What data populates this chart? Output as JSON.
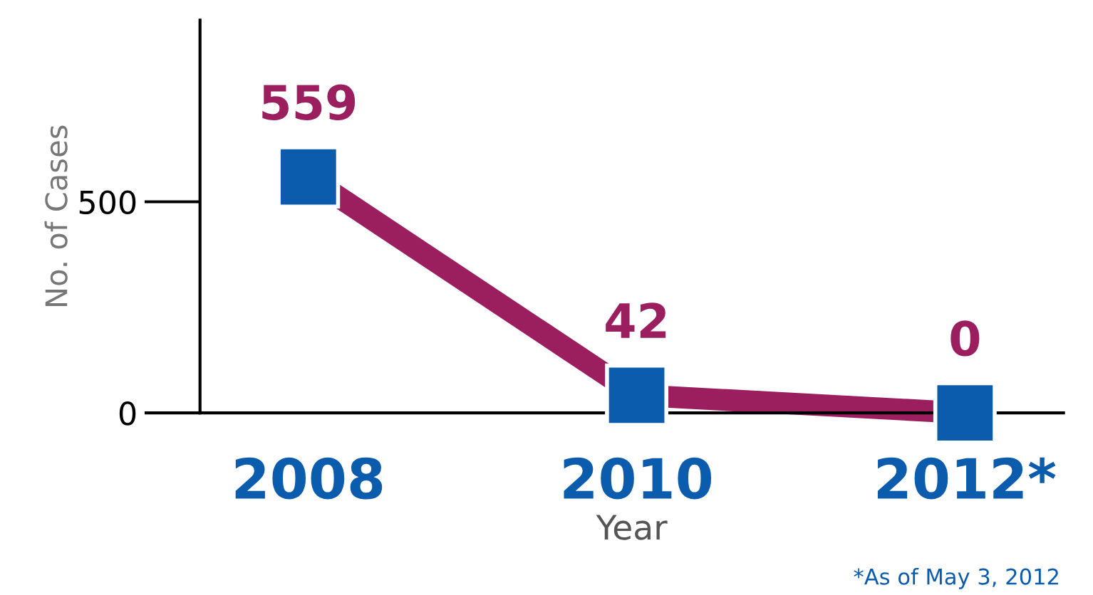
{
  "chart_data": {
    "type": "line",
    "xlabel": "Year",
    "ylabel": "No. of Cases",
    "categories": [
      "2008",
      "2010",
      "2012*"
    ],
    "series": [
      {
        "color": "#9b1f5f",
        "values": [
          559,
          42,
          0
        ]
      }
    ],
    "marker": "square",
    "ylim": [
      0,
      930
    ],
    "yticks": [
      0,
      500
    ],
    "data_labels": true,
    "grid": false,
    "legend": false,
    "annotations": [
      "*As of May 3, 2012"
    ]
  }
}
